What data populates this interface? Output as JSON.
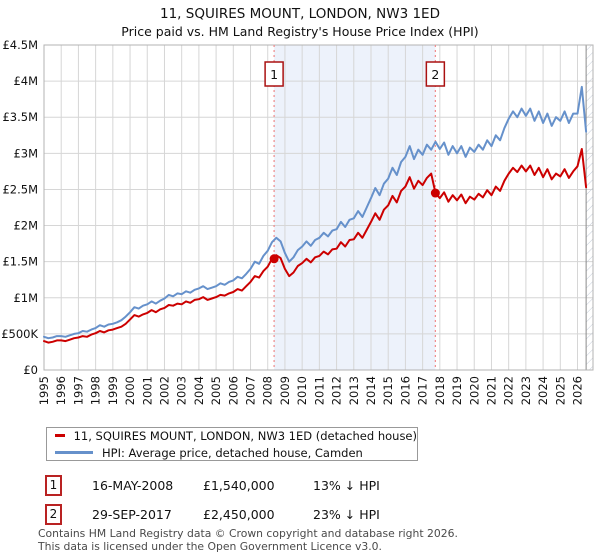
{
  "header": {
    "title": "11, SQUIRES MOUNT, LONDON, NW3 1ED",
    "subtitle": "Price paid vs. HM Land Registry's House Price Index (HPI)"
  },
  "chart_data": {
    "type": "line",
    "xlim": [
      1995,
      2026.9
    ],
    "ylim": [
      0,
      4.5
    ],
    "x_ticks": [
      "1995",
      "1996",
      "1997",
      "1998",
      "1999",
      "2000",
      "2001",
      "2002",
      "2003",
      "2004",
      "2005",
      "2006",
      "2007",
      "2008",
      "2009",
      "2010",
      "2011",
      "2012",
      "2013",
      "2014",
      "2015",
      "2016",
      "2017",
      "2018",
      "2019",
      "2020",
      "2021",
      "2022",
      "2023",
      "2024",
      "2025",
      "2026"
    ],
    "y_ticks": [
      {
        "v": 0,
        "label": "£0"
      },
      {
        "v": 0.5,
        "label": "£500K"
      },
      {
        "v": 1,
        "label": "£1M"
      },
      {
        "v": 1.5,
        "label": "£1.5M"
      },
      {
        "v": 2,
        "label": "£2M"
      },
      {
        "v": 2.5,
        "label": "£2.5M"
      },
      {
        "v": 3,
        "label": "£3M"
      },
      {
        "v": 3.5,
        "label": "£3.5M"
      },
      {
        "v": 4,
        "label": "£4M"
      },
      {
        "v": 4.5,
        "label": "£4.5M"
      }
    ],
    "grid": true,
    "legend_position": "bottom-left",
    "band": {
      "from": 2008.37,
      "to": 2017.74,
      "color": "#edf2fb"
    },
    "hatch_from": 2026.5,
    "dashed_line_color": "#ef8a8a",
    "grid_color": "#d6d6d6",
    "border_color": "#b3b3b3",
    "series": [
      {
        "key": "property-price-line",
        "name": "11, SQUIRES MOUNT, LONDON, NW3 1ED (detached house)",
        "color": "#cc0000",
        "unit": "£M",
        "start": 1995,
        "step": 0.25,
        "values": [
          0.4,
          0.38,
          0.39,
          0.41,
          0.41,
          0.4,
          0.42,
          0.44,
          0.45,
          0.47,
          0.46,
          0.49,
          0.51,
          0.54,
          0.52,
          0.55,
          0.56,
          0.58,
          0.6,
          0.64,
          0.7,
          0.76,
          0.74,
          0.77,
          0.79,
          0.83,
          0.8,
          0.84,
          0.86,
          0.9,
          0.89,
          0.92,
          0.91,
          0.95,
          0.93,
          0.97,
          0.98,
          1.01,
          0.97,
          0.99,
          1.01,
          1.04,
          1.03,
          1.06,
          1.08,
          1.12,
          1.1,
          1.16,
          1.22,
          1.3,
          1.28,
          1.37,
          1.43,
          1.54,
          1.59,
          1.55,
          1.4,
          1.3,
          1.35,
          1.44,
          1.48,
          1.54,
          1.49,
          1.56,
          1.58,
          1.64,
          1.6,
          1.67,
          1.68,
          1.77,
          1.71,
          1.8,
          1.81,
          1.9,
          1.83,
          1.94,
          2.05,
          2.17,
          2.08,
          2.22,
          2.28,
          2.41,
          2.32,
          2.48,
          2.54,
          2.67,
          2.51,
          2.62,
          2.56,
          2.66,
          2.72,
          2.45,
          2.38,
          2.46,
          2.33,
          2.42,
          2.35,
          2.43,
          2.31,
          2.4,
          2.36,
          2.44,
          2.39,
          2.49,
          2.42,
          2.54,
          2.48,
          2.62,
          2.72,
          2.8,
          2.74,
          2.83,
          2.75,
          2.83,
          2.7,
          2.8,
          2.67,
          2.78,
          2.64,
          2.72,
          2.68,
          2.78,
          2.66,
          2.75,
          2.82,
          3.06,
          2.53
        ]
      },
      {
        "key": "hpi-line",
        "name": "HPI: Average price, detached house, Camden",
        "color": "#6691cb",
        "unit": "£M",
        "start": 1995,
        "step": 0.25,
        "values": [
          0.46,
          0.44,
          0.45,
          0.47,
          0.47,
          0.46,
          0.48,
          0.5,
          0.51,
          0.54,
          0.53,
          0.56,
          0.58,
          0.62,
          0.6,
          0.63,
          0.64,
          0.66,
          0.69,
          0.74,
          0.8,
          0.87,
          0.85,
          0.89,
          0.91,
          0.95,
          0.92,
          0.96,
          0.99,
          1.04,
          1.02,
          1.06,
          1.05,
          1.09,
          1.07,
          1.11,
          1.13,
          1.16,
          1.12,
          1.14,
          1.16,
          1.2,
          1.18,
          1.22,
          1.24,
          1.29,
          1.27,
          1.33,
          1.4,
          1.5,
          1.47,
          1.58,
          1.65,
          1.77,
          1.83,
          1.78,
          1.62,
          1.5,
          1.56,
          1.66,
          1.71,
          1.78,
          1.72,
          1.8,
          1.83,
          1.9,
          1.85,
          1.93,
          1.95,
          2.05,
          1.98,
          2.08,
          2.1,
          2.2,
          2.12,
          2.25,
          2.38,
          2.52,
          2.42,
          2.58,
          2.65,
          2.8,
          2.7,
          2.88,
          2.95,
          3.1,
          2.92,
          3.05,
          2.98,
          3.12,
          3.05,
          3.16,
          3.06,
          3.15,
          2.98,
          3.1,
          3.0,
          3.1,
          2.95,
          3.08,
          3.02,
          3.12,
          3.05,
          3.18,
          3.1,
          3.25,
          3.18,
          3.35,
          3.48,
          3.58,
          3.5,
          3.62,
          3.52,
          3.62,
          3.45,
          3.58,
          3.42,
          3.55,
          3.38,
          3.5,
          3.45,
          3.58,
          3.42,
          3.55,
          3.55,
          3.92,
          3.3
        ]
      }
    ],
    "sales": [
      {
        "label": "1",
        "x": 2008.37,
        "y": 1.54
      },
      {
        "label": "2",
        "x": 2017.74,
        "y": 2.45
      }
    ]
  },
  "annotations": [
    {
      "num": "1",
      "date": "16-MAY-2008",
      "price": "£1,540,000",
      "delta": "13% ↓ HPI"
    },
    {
      "num": "2",
      "date": "29-SEP-2017",
      "price": "£2,450,000",
      "delta": "23% ↓ HPI"
    }
  ],
  "footer": {
    "line1": "Contains HM Land Registry data © Crown copyright and database right 2026.",
    "line2": "This data is licensed under the Open Government Licence v3.0."
  }
}
